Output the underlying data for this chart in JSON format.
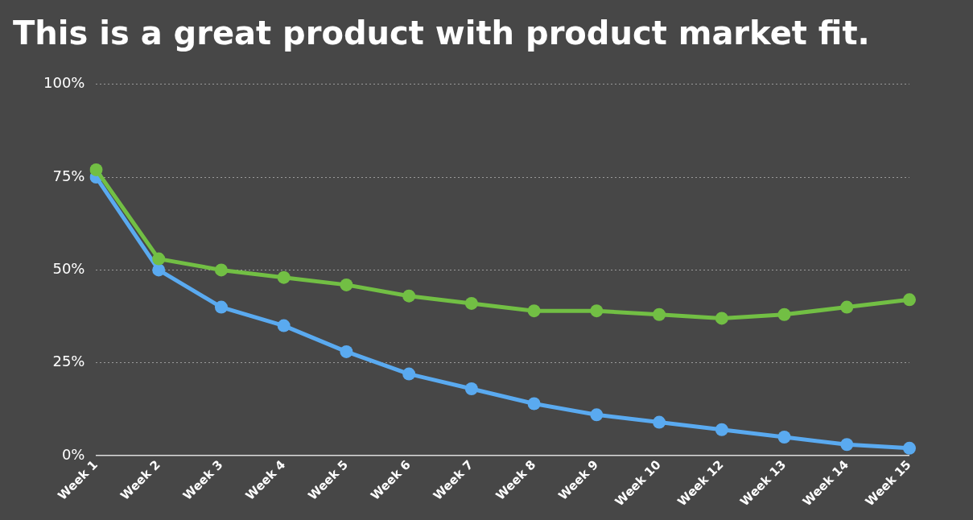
{
  "chart_data": {
    "type": "line",
    "title": "This is a great product with product market fit.",
    "categories": [
      "Week 1",
      "Week 2",
      "Week 3",
      "Week 4",
      "Week 5",
      "Week 6",
      "Week 7",
      "Week 8",
      "Week 9",
      "Week 10",
      "Week 12",
      "Week 13",
      "Week 14",
      "Week 15"
    ],
    "series": [
      {
        "color": "#72bf44",
        "values": [
          77,
          53,
          50,
          48,
          46,
          43,
          41,
          39,
          39,
          38,
          37,
          38,
          40,
          42
        ]
      },
      {
        "color": "#5aaaf0",
        "values": [
          75,
          50,
          40,
          35,
          28,
          22,
          18,
          14,
          11,
          9,
          7,
          5,
          3,
          2
        ]
      }
    ],
    "ylim": [
      0,
      100
    ],
    "yticks": [
      {
        "value": 0,
        "label": "0%"
      },
      {
        "value": 25,
        "label": "25%"
      },
      {
        "value": 50,
        "label": "50%"
      },
      {
        "value": 75,
        "label": "75%"
      },
      {
        "value": 100,
        "label": "100%"
      }
    ],
    "grid": "y",
    "legend": false,
    "marker": "circle",
    "line_style": "solid"
  }
}
